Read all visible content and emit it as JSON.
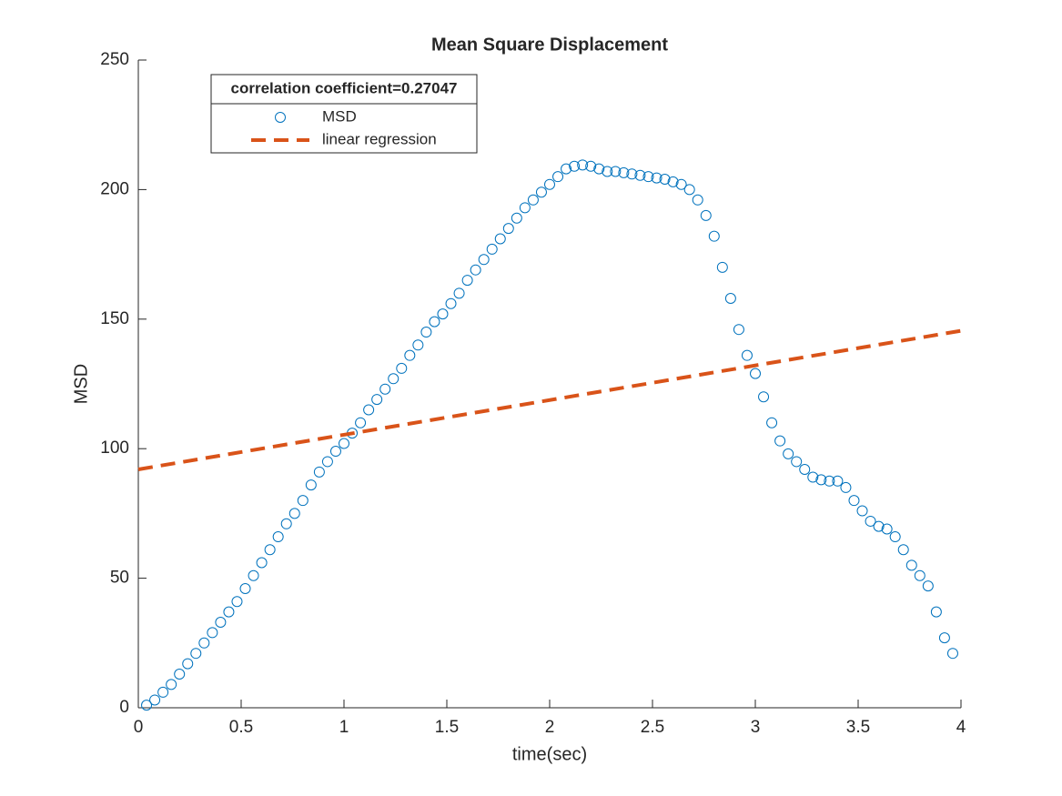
{
  "chart_data": {
    "type": "scatter",
    "title": "Mean Square Displacement",
    "x_label": "time(sec)",
    "y_label": "MSD",
    "legend": "northwest",
    "legend_title": "correlation coefficient=0.27047",
    "xlim": [
      0,
      4
    ],
    "xticks": [
      0,
      0.5,
      1,
      1.5,
      2,
      2.5,
      3,
      3.5,
      4
    ],
    "ylim": [
      0,
      250
    ],
    "yticks": [
      0,
      50,
      100,
      150,
      200,
      250
    ],
    "series": [
      {
        "name": "MSD",
        "kind": "markers",
        "color": "#0072bd",
        "x": [
          0.04,
          0.08,
          0.12,
          0.16,
          0.2,
          0.24,
          0.28,
          0.32,
          0.36,
          0.4,
          0.44,
          0.48,
          0.52,
          0.56,
          0.6,
          0.64,
          0.68,
          0.72,
          0.76,
          0.8,
          0.84,
          0.88,
          0.92,
          0.96,
          1.0,
          1.04,
          1.08,
          1.12,
          1.16,
          1.2,
          1.24,
          1.28,
          1.32,
          1.36,
          1.4,
          1.44,
          1.48,
          1.52,
          1.56,
          1.6,
          1.64,
          1.68,
          1.72,
          1.76,
          1.8,
          1.84,
          1.88,
          1.92,
          1.96,
          2.0,
          2.04,
          2.08,
          2.12,
          2.16,
          2.2,
          2.24,
          2.28,
          2.32,
          2.36,
          2.4,
          2.44,
          2.48,
          2.52,
          2.56,
          2.6,
          2.64,
          2.68,
          2.72,
          2.76,
          2.8,
          2.84,
          2.88,
          2.92,
          2.96,
          3.0,
          3.04,
          3.08,
          3.12,
          3.16,
          3.2,
          3.24,
          3.28,
          3.32,
          3.36,
          3.4,
          3.44,
          3.48,
          3.52,
          3.56,
          3.6,
          3.64,
          3.68,
          3.72,
          3.76,
          3.8,
          3.84,
          3.88,
          3.92,
          3.96
        ],
        "values": [
          1,
          3,
          6,
          9,
          13,
          17,
          21,
          25,
          29,
          33,
          37,
          41,
          46,
          51,
          56,
          61,
          66,
          71,
          75,
          80,
          86,
          91,
          95,
          99,
          102,
          106,
          110,
          115,
          119,
          123,
          127,
          131,
          136,
          140,
          145,
          149,
          152,
          156,
          160,
          165,
          169,
          173,
          177,
          181,
          185,
          189,
          193,
          196,
          199,
          202,
          205,
          208,
          209,
          209.5,
          209,
          208,
          207,
          207,
          206.5,
          206,
          205.5,
          205,
          204.5,
          204,
          203,
          202,
          200,
          196,
          190,
          182,
          170,
          158,
          146,
          136,
          129,
          120,
          110,
          103,
          98,
          95,
          92,
          89,
          88,
          87.5,
          87.5,
          85,
          80,
          76,
          72,
          70,
          69,
          66,
          61,
          55,
          51,
          47,
          37,
          27,
          21
        ]
      },
      {
        "name": "linear regression",
        "kind": "dashed-line",
        "color": "#d95319",
        "x": [
          0,
          4
        ],
        "values": [
          92,
          145.5
        ]
      }
    ]
  }
}
